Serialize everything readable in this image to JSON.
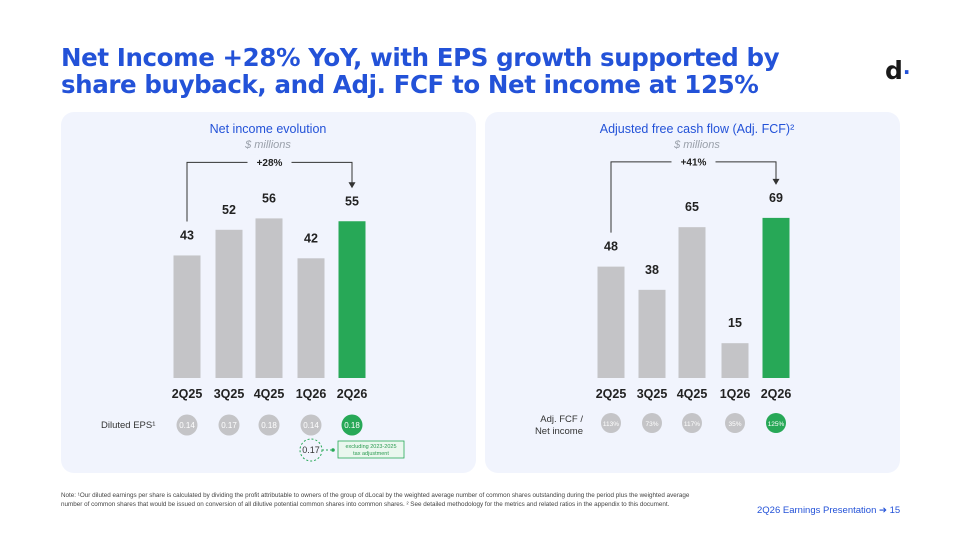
{
  "slide": {
    "title": "Net Income +28% YoY, with EPS growth supported by share buyback, and Adj. FCF to Net income at 125%",
    "logo_text": "d",
    "logo_dot": "·",
    "footnote": "Note: ¹Our diluted earnings per share is calculated by dividing the profit attributable to owners of the group of dLocal by the weighted average number of common shares outstanding during the period plus the weighted average number of common shares that would be issued on conversion of all dilutive potential common shares into common shares. ² See detailed methodology for the metrics and related ratios in the appendix to this document.",
    "page_label": "2Q26 Earnings Presentation",
    "page_arrow": "➔",
    "page_number": "15"
  },
  "colors": {
    "accent": "#2352d8",
    "bar_gray": "#c4c4c7",
    "bar_green": "#27a857",
    "pill_gray": "#c4c4c7",
    "panel_bg": "#f1f4fd"
  },
  "chart_data": [
    {
      "type": "bar",
      "title": "Net income evolution",
      "subtitle": "$ millions",
      "categories": [
        "2Q25",
        "3Q25",
        "4Q25",
        "1Q26",
        "2Q26"
      ],
      "values": [
        43,
        52,
        56,
        42,
        55
      ],
      "highlight_index": 4,
      "growth_label": "+28%",
      "growth_from": 0,
      "growth_to": 4,
      "ylim": [
        0,
        60
      ],
      "secondary_row": {
        "label": "Diluted EPS¹",
        "values": [
          "0.14",
          "0.17",
          "0.18",
          "0.14",
          "0.18"
        ]
      },
      "annotation": {
        "value": "0.17",
        "text_line1": "excluding 2023-2025",
        "text_line2": "tax adjustment"
      }
    },
    {
      "type": "bar",
      "title": "Adjusted free cash flow (Adj. FCF)²",
      "subtitle": "$ millions",
      "categories": [
        "2Q25",
        "3Q25",
        "4Q25",
        "1Q26",
        "2Q26"
      ],
      "values": [
        48,
        38,
        65,
        15,
        69
      ],
      "highlight_index": 4,
      "growth_label": "+41%",
      "growth_from": 0,
      "growth_to": 4,
      "ylim": [
        0,
        78
      ],
      "secondary_row": {
        "label_line1": "Adj. FCF /",
        "label_line2": "Net income",
        "values": [
          "113%",
          "73%",
          "117%",
          "35%",
          "125%"
        ]
      }
    }
  ]
}
